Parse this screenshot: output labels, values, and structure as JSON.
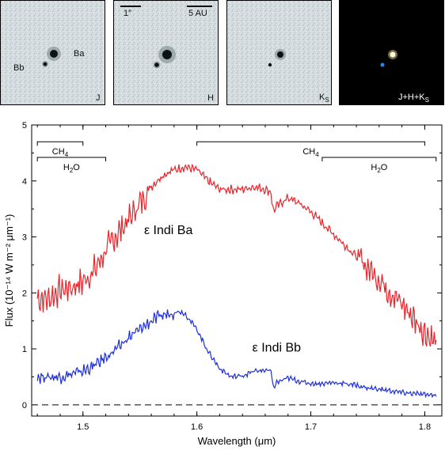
{
  "panels": [
    {
      "band": "J",
      "band_sub": "",
      "labels": {
        "ba": "Ba",
        "bb": "Bb"
      }
    },
    {
      "band": "H",
      "band_sub": "",
      "scalebar_arcsec": "1″",
      "scalebar_au": "5 AU"
    },
    {
      "band": "K",
      "band_sub": "S"
    },
    {
      "band": "J+H+K",
      "band_sub": "S"
    }
  ],
  "chart_data": {
    "type": "line",
    "xlabel": "Wavelength  (μm)",
    "ylabel": "Flux (10⁻¹⁴ W m⁻² μm⁻¹)",
    "xlim": [
      1.455,
      1.815
    ],
    "ylim": [
      -0.2,
      5
    ],
    "xticks": [
      "1.5",
      "1.6",
      "1.7",
      "1.8"
    ],
    "yticks": [
      "0",
      "1",
      "2",
      "3",
      "4",
      "5"
    ],
    "series": [
      {
        "name": "ε Indi Ba",
        "color": "#e8252b",
        "x": [
          1.46,
          1.47,
          1.48,
          1.49,
          1.5,
          1.51,
          1.52,
          1.53,
          1.54,
          1.55,
          1.56,
          1.57,
          1.58,
          1.59,
          1.6,
          1.61,
          1.62,
          1.63,
          1.64,
          1.65,
          1.66,
          1.665,
          1.667,
          1.67,
          1.68,
          1.69,
          1.7,
          1.71,
          1.72,
          1.73,
          1.74,
          1.75,
          1.76,
          1.77,
          1.78,
          1.79,
          1.8,
          1.81
        ],
        "y": [
          1.9,
          1.9,
          2.05,
          2.1,
          2.2,
          2.4,
          2.75,
          3.05,
          3.3,
          3.6,
          3.9,
          4.1,
          4.2,
          4.25,
          4.2,
          4.0,
          3.85,
          3.85,
          3.85,
          3.9,
          3.85,
          3.8,
          3.45,
          3.55,
          3.7,
          3.6,
          3.45,
          3.25,
          3.05,
          2.85,
          2.65,
          2.45,
          2.25,
          2.0,
          1.8,
          1.55,
          1.3,
          1.1
        ]
      },
      {
        "name": "ε Indi Bb",
        "color": "#1f2fd6",
        "x": [
          1.46,
          1.47,
          1.48,
          1.49,
          1.5,
          1.51,
          1.52,
          1.53,
          1.54,
          1.55,
          1.56,
          1.57,
          1.58,
          1.585,
          1.59,
          1.6,
          1.61,
          1.62,
          1.63,
          1.64,
          1.65,
          1.66,
          1.665,
          1.667,
          1.67,
          1.68,
          1.69,
          1.7,
          1.71,
          1.72,
          1.73,
          1.74,
          1.75,
          1.76,
          1.77,
          1.78,
          1.79,
          1.8,
          1.81
        ],
        "y": [
          0.5,
          0.5,
          0.5,
          0.55,
          0.6,
          0.7,
          0.85,
          1.0,
          1.2,
          1.35,
          1.5,
          1.6,
          1.65,
          1.67,
          1.62,
          1.35,
          0.95,
          0.65,
          0.5,
          0.52,
          0.6,
          0.62,
          0.6,
          0.3,
          0.4,
          0.48,
          0.42,
          0.38,
          0.38,
          0.4,
          0.38,
          0.35,
          0.3,
          0.28,
          0.25,
          0.22,
          0.2,
          0.18,
          0.18
        ]
      }
    ],
    "series_labels": [
      {
        "text": "ε Indi Ba",
        "x": 1.575,
        "y": 3.05
      },
      {
        "text": "ε Indi Bb",
        "x": 1.67,
        "y": 0.95
      }
    ],
    "zero_line": {
      "y": 0,
      "style": "dashed"
    },
    "features": [
      {
        "label": "CH",
        "sub": "4",
        "x0": 1.46,
        "x1": 1.5,
        "y": 4.7
      },
      {
        "label": "H",
        "sub": "2",
        "tail": "O",
        "x0": 1.46,
        "x1": 1.52,
        "y": 4.42
      },
      {
        "label": "CH",
        "sub": "4",
        "x0": 1.6,
        "x1": 1.8,
        "y": 4.7
      },
      {
        "label": "H",
        "sub": "2",
        "tail": "O",
        "x0": 1.71,
        "x1": 1.81,
        "y": 4.42
      }
    ]
  }
}
